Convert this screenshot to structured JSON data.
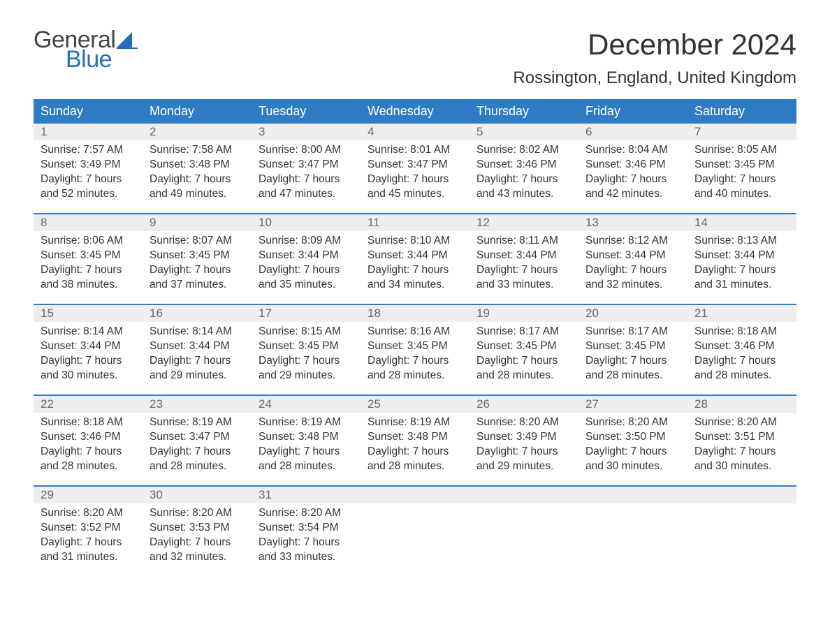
{
  "brand": {
    "word1": "General",
    "word2": "Blue",
    "sail_color": "#2570b8",
    "text_gray": "#444444"
  },
  "title": "December 2024",
  "location": "Rossington, England, United Kingdom",
  "colors": {
    "header_bg": "#2f7cc4",
    "header_text": "#ffffff",
    "daynum_bg": "#eeeeee",
    "daynum_text": "#6a6a6a",
    "body_text": "#333333",
    "week_divider": "#2f7cc4",
    "page_bg": "#ffffff"
  },
  "fonts": {
    "title_pt": 42,
    "location_pt": 24,
    "dayhead_pt": 18,
    "daynum_pt": 17,
    "cell_pt": 15.5
  },
  "day_headers": [
    "Sunday",
    "Monday",
    "Tuesday",
    "Wednesday",
    "Thursday",
    "Friday",
    "Saturday"
  ],
  "weeks": [
    [
      {
        "n": "1",
        "sunrise": "Sunrise: 7:57 AM",
        "sunset": "Sunset: 3:49 PM",
        "d1": "Daylight: 7 hours",
        "d2": "and 52 minutes."
      },
      {
        "n": "2",
        "sunrise": "Sunrise: 7:58 AM",
        "sunset": "Sunset: 3:48 PM",
        "d1": "Daylight: 7 hours",
        "d2": "and 49 minutes."
      },
      {
        "n": "3",
        "sunrise": "Sunrise: 8:00 AM",
        "sunset": "Sunset: 3:47 PM",
        "d1": "Daylight: 7 hours",
        "d2": "and 47 minutes."
      },
      {
        "n": "4",
        "sunrise": "Sunrise: 8:01 AM",
        "sunset": "Sunset: 3:47 PM",
        "d1": "Daylight: 7 hours",
        "d2": "and 45 minutes."
      },
      {
        "n": "5",
        "sunrise": "Sunrise: 8:02 AM",
        "sunset": "Sunset: 3:46 PM",
        "d1": "Daylight: 7 hours",
        "d2": "and 43 minutes."
      },
      {
        "n": "6",
        "sunrise": "Sunrise: 8:04 AM",
        "sunset": "Sunset: 3:46 PM",
        "d1": "Daylight: 7 hours",
        "d2": "and 42 minutes."
      },
      {
        "n": "7",
        "sunrise": "Sunrise: 8:05 AM",
        "sunset": "Sunset: 3:45 PM",
        "d1": "Daylight: 7 hours",
        "d2": "and 40 minutes."
      }
    ],
    [
      {
        "n": "8",
        "sunrise": "Sunrise: 8:06 AM",
        "sunset": "Sunset: 3:45 PM",
        "d1": "Daylight: 7 hours",
        "d2": "and 38 minutes."
      },
      {
        "n": "9",
        "sunrise": "Sunrise: 8:07 AM",
        "sunset": "Sunset: 3:45 PM",
        "d1": "Daylight: 7 hours",
        "d2": "and 37 minutes."
      },
      {
        "n": "10",
        "sunrise": "Sunrise: 8:09 AM",
        "sunset": "Sunset: 3:44 PM",
        "d1": "Daylight: 7 hours",
        "d2": "and 35 minutes."
      },
      {
        "n": "11",
        "sunrise": "Sunrise: 8:10 AM",
        "sunset": "Sunset: 3:44 PM",
        "d1": "Daylight: 7 hours",
        "d2": "and 34 minutes."
      },
      {
        "n": "12",
        "sunrise": "Sunrise: 8:11 AM",
        "sunset": "Sunset: 3:44 PM",
        "d1": "Daylight: 7 hours",
        "d2": "and 33 minutes."
      },
      {
        "n": "13",
        "sunrise": "Sunrise: 8:12 AM",
        "sunset": "Sunset: 3:44 PM",
        "d1": "Daylight: 7 hours",
        "d2": "and 32 minutes."
      },
      {
        "n": "14",
        "sunrise": "Sunrise: 8:13 AM",
        "sunset": "Sunset: 3:44 PM",
        "d1": "Daylight: 7 hours",
        "d2": "and 31 minutes."
      }
    ],
    [
      {
        "n": "15",
        "sunrise": "Sunrise: 8:14 AM",
        "sunset": "Sunset: 3:44 PM",
        "d1": "Daylight: 7 hours",
        "d2": "and 30 minutes."
      },
      {
        "n": "16",
        "sunrise": "Sunrise: 8:14 AM",
        "sunset": "Sunset: 3:44 PM",
        "d1": "Daylight: 7 hours",
        "d2": "and 29 minutes."
      },
      {
        "n": "17",
        "sunrise": "Sunrise: 8:15 AM",
        "sunset": "Sunset: 3:45 PM",
        "d1": "Daylight: 7 hours",
        "d2": "and 29 minutes."
      },
      {
        "n": "18",
        "sunrise": "Sunrise: 8:16 AM",
        "sunset": "Sunset: 3:45 PM",
        "d1": "Daylight: 7 hours",
        "d2": "and 28 minutes."
      },
      {
        "n": "19",
        "sunrise": "Sunrise: 8:17 AM",
        "sunset": "Sunset: 3:45 PM",
        "d1": "Daylight: 7 hours",
        "d2": "and 28 minutes."
      },
      {
        "n": "20",
        "sunrise": "Sunrise: 8:17 AM",
        "sunset": "Sunset: 3:45 PM",
        "d1": "Daylight: 7 hours",
        "d2": "and 28 minutes."
      },
      {
        "n": "21",
        "sunrise": "Sunrise: 8:18 AM",
        "sunset": "Sunset: 3:46 PM",
        "d1": "Daylight: 7 hours",
        "d2": "and 28 minutes."
      }
    ],
    [
      {
        "n": "22",
        "sunrise": "Sunrise: 8:18 AM",
        "sunset": "Sunset: 3:46 PM",
        "d1": "Daylight: 7 hours",
        "d2": "and 28 minutes."
      },
      {
        "n": "23",
        "sunrise": "Sunrise: 8:19 AM",
        "sunset": "Sunset: 3:47 PM",
        "d1": "Daylight: 7 hours",
        "d2": "and 28 minutes."
      },
      {
        "n": "24",
        "sunrise": "Sunrise: 8:19 AM",
        "sunset": "Sunset: 3:48 PM",
        "d1": "Daylight: 7 hours",
        "d2": "and 28 minutes."
      },
      {
        "n": "25",
        "sunrise": "Sunrise: 8:19 AM",
        "sunset": "Sunset: 3:48 PM",
        "d1": "Daylight: 7 hours",
        "d2": "and 28 minutes."
      },
      {
        "n": "26",
        "sunrise": "Sunrise: 8:20 AM",
        "sunset": "Sunset: 3:49 PM",
        "d1": "Daylight: 7 hours",
        "d2": "and 29 minutes."
      },
      {
        "n": "27",
        "sunrise": "Sunrise: 8:20 AM",
        "sunset": "Sunset: 3:50 PM",
        "d1": "Daylight: 7 hours",
        "d2": "and 30 minutes."
      },
      {
        "n": "28",
        "sunrise": "Sunrise: 8:20 AM",
        "sunset": "Sunset: 3:51 PM",
        "d1": "Daylight: 7 hours",
        "d2": "and 30 minutes."
      }
    ],
    [
      {
        "n": "29",
        "sunrise": "Sunrise: 8:20 AM",
        "sunset": "Sunset: 3:52 PM",
        "d1": "Daylight: 7 hours",
        "d2": "and 31 minutes."
      },
      {
        "n": "30",
        "sunrise": "Sunrise: 8:20 AM",
        "sunset": "Sunset: 3:53 PM",
        "d1": "Daylight: 7 hours",
        "d2": "and 32 minutes."
      },
      {
        "n": "31",
        "sunrise": "Sunrise: 8:20 AM",
        "sunset": "Sunset: 3:54 PM",
        "d1": "Daylight: 7 hours",
        "d2": "and 33 minutes."
      },
      {
        "empty": true
      },
      {
        "empty": true
      },
      {
        "empty": true
      },
      {
        "empty": true
      }
    ]
  ]
}
